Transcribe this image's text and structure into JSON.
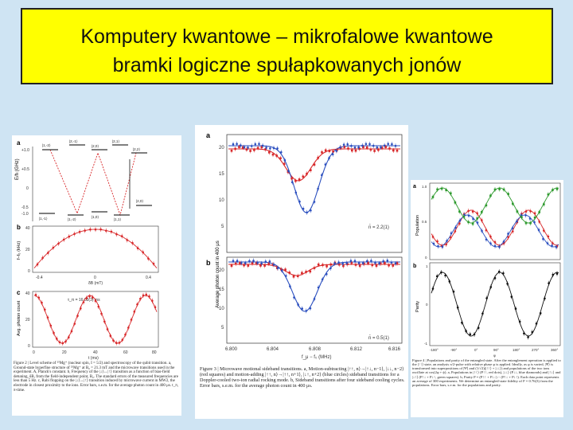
{
  "slide": {
    "title_line1": "Komputery kwantowe – mikrofalowe kwantowe",
    "title_line2": "bramki logiczne spułapkowanych jonów",
    "bg_color": "#cfe4f3",
    "title_bg": "#ffff00"
  },
  "figure2": {
    "panel_a": "a",
    "panel_b": "b",
    "panel_c": "c",
    "levels": [
      "|1,-2⟩",
      "|2,-1⟩",
      "|2,0⟩",
      "|2,1⟩",
      "|2,2⟩",
      "|1,-1⟩",
      "|1,-2⟩",
      "|1,0⟩",
      "|1,1⟩",
      "|2,0⟩"
    ],
    "y_a_ticks": [
      "+1.0",
      "+0.5",
      "0",
      "-0.5",
      "-1.0"
    ],
    "y_a_label": "E/h (GHz)",
    "y_b_label": "f−f₀ (kHz)",
    "y_b_ticks": [
      "40",
      "20",
      "0"
    ],
    "x_b_ticks": [
      "-0.4",
      "0",
      "0.4"
    ],
    "x_b_label": "δB (mT)",
    "y_c_label": "Avg. photon count",
    "y_c_ticks": [
      "40",
      "20",
      "0"
    ],
    "x_c_ticks": [
      "0",
      "20",
      "40",
      "60",
      "80"
    ],
    "x_c_label": "t (ms)",
    "annot_c": "τ_π = 16.03(3) ms",
    "caption": "Figure 2 | Level scheme of ²⁵Mg⁺ (nuclear spin, I = 5/2) and spectroscopy of the qubit transition. a, Ground-state hyperfine structure of ²⁵Mg⁺ at B₀ = 21.3 mT and the microwave transitions used in the experiment. A, Planck's constant. b, Frequency of the |↓⟩↔|↑⟩ transition as a function of bias-field detuning, δB, from the field-independent point, B₀. The standard errors of the measured frequencies are less than 5 Hz. c, Rabi flopping on the |↓⟩↔|↑⟩ transition induced by microwave current in MW2, the electrode in closest proximity to the ions. Error bars, s.e.m. for the average photon count in 400 μs. t_π, π-time."
  },
  "figure3": {
    "panel_a": "a",
    "panel_b": "b",
    "y_ticks": [
      "20",
      "15",
      "10",
      "5"
    ],
    "y_label": "Average photon count in 400 μs",
    "x_ticks": [
      "6.800",
      "6.804",
      "6.808",
      "6.812",
      "6.816"
    ],
    "x_label": "f_μ − f₀ (MHz)",
    "annot_a": "n̄ = 2.2(1)",
    "annot_b": "n̄ = 0.5(1)",
    "caption": "Figure 3 | Microwave motional sideband transitions. a, Motion-subtracting |↑↑, n⟩→|↑↓, n−1⟩, |↓↓, n−2⟩ (red squares) and motion-adding |↑↑, n⟩→|↑↑, n+1⟩, |↓↑, n+2⟩ (blue circles) sideband transitions for a Doppler-cooled two-ion radial rocking mode. b, Sideband transitions after four sideband cooling cycles. Error bars, s.e.m. for the average photon count in 400 μs."
  },
  "figure4": {
    "panel_a": "a",
    "panel_b": "b",
    "y_a_label": "Population",
    "y_a_ticks": [
      "1.0",
      "0.5",
      "0"
    ],
    "y_b_label": "Parity",
    "y_b_ticks": [
      "1",
      "0",
      "-1"
    ],
    "x_ticks": [
      "-180°",
      "-90°",
      "0°",
      "90°",
      "180°",
      "270°",
      "360°"
    ],
    "x_label": "φ",
    "caption": "Figure 4 | Populations and parity of the entangled state. After the entanglement operation is applied to the |↑↑⟩ state, an analysis π/2-pulse with relative phase φ is applied. Ideally, as φ is varied, |Ψ⟩ is transformed into superpositions of |Ψ⟩ and (1/√2)(|↑↑⟩ + |↓↓⟩) and populations of the two ions oscillate at cos(2φ + ϕ). a, Populations in |↑↑⟩ (P↑↑, red dots), |↓↓⟩ (P↓↓, blue diamonds) and |↑↓⟩ and |↓↑⟩ (P↑↓ + P↓↑, green squares). b, Parity P = (P↑↑ + P↓↓) − (P↑↓ + P↓↑). Each data point represents an average of 300 experiments. We determine an entangled-state fidelity of F = 0.76(3) from the populations. Error bars, s.e.m. for the populations and parity."
  },
  "colors": {
    "red": "#d8282a",
    "blue": "#2b4fbf",
    "green": "#2e9a2e",
    "black": "#111111"
  }
}
